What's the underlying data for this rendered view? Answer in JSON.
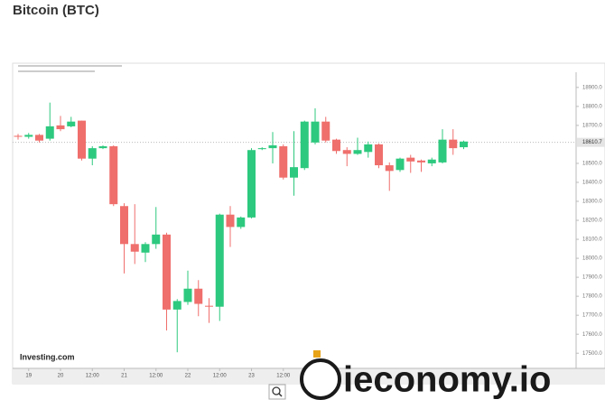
{
  "title": "Bitcoin (BTC)",
  "chart_data": {
    "type": "candlestick",
    "brand": "Investing.com",
    "watermark": "ieconomy.io",
    "categories": [
      null,
      "19",
      null,
      null,
      "20",
      null,
      null,
      "12:00",
      null,
      null,
      "21",
      null,
      null,
      "12:00",
      null,
      null,
      "22",
      null,
      null,
      "12:00",
      null,
      null,
      "23",
      null,
      null,
      "12:00",
      null,
      null,
      null,
      null,
      null,
      null,
      null,
      null,
      null,
      null,
      null,
      null,
      null,
      null,
      null,
      null,
      null
    ],
    "open": [
      18645,
      18640,
      18650,
      18630,
      18700,
      18695,
      18725,
      18525,
      18580,
      18590,
      18275,
      18075,
      18030,
      18075,
      18125,
      17730,
      17770,
      17840,
      17750,
      17745,
      18230,
      18165,
      18215,
      18575,
      18580,
      18590,
      18425,
      18475,
      18610,
      18720,
      18625,
      18570,
      18550,
      18560,
      18600,
      18490,
      18465,
      18530,
      18515,
      18500,
      18505,
      18625,
      18585
    ],
    "high": [
      18655,
      18660,
      18655,
      18820,
      18750,
      18745,
      18725,
      18590,
      18595,
      18595,
      18290,
      18285,
      18085,
      18270,
      18135,
      17785,
      17935,
      17885,
      17790,
      18235,
      18275,
      18220,
      18580,
      18585,
      18665,
      18600,
      18670,
      18725,
      18790,
      18745,
      18630,
      18585,
      18635,
      18615,
      18605,
      18505,
      18530,
      18545,
      18520,
      18530,
      18680,
      18680,
      18620
    ],
    "low": [
      18625,
      18630,
      18610,
      18620,
      18670,
      18690,
      18515,
      18490,
      18575,
      18275,
      17920,
      17970,
      17980,
      18050,
      17620,
      17505,
      17755,
      17695,
      17660,
      17670,
      18060,
      18155,
      18210,
      18570,
      18500,
      18415,
      18330,
      18465,
      18600,
      18610,
      18550,
      18485,
      18545,
      18530,
      18475,
      18355,
      18455,
      18450,
      18455,
      18485,
      18500,
      18545,
      18575
    ],
    "close": [
      18640,
      18650,
      18620,
      18695,
      18680,
      18720,
      18525,
      18580,
      18590,
      18285,
      18075,
      18035,
      18075,
      18125,
      17730,
      17775,
      17840,
      17760,
      17745,
      18230,
      18165,
      18215,
      18570,
      18580,
      18595,
      18425,
      18480,
      18720,
      18720,
      18620,
      18565,
      18550,
      18570,
      18600,
      18490,
      18460,
      18525,
      18510,
      18505,
      18520,
      18625,
      18580,
      18615
    ],
    "up_color": "#2dc97e",
    "down_color": "#ef6f6c",
    "ylim": [
      17425,
      18980
    ],
    "yticks": [
      {
        "value": 18900,
        "label": "18900.0"
      },
      {
        "value": 18800,
        "label": "18800.0"
      },
      {
        "value": 18700,
        "label": "18700.0"
      },
      {
        "value": 18500,
        "label": "18500.0"
      },
      {
        "value": 18400,
        "label": "18400.0"
      },
      {
        "value": 18300,
        "label": "18300.0"
      },
      {
        "value": 18200,
        "label": "18200.0"
      },
      {
        "value": 18100,
        "label": "18100.0"
      },
      {
        "value": 18000,
        "label": "18000.0"
      },
      {
        "value": 17900,
        "label": "17900.0"
      },
      {
        "value": 17800,
        "label": "17800.0"
      },
      {
        "value": 17700,
        "label": "17700.0"
      },
      {
        "value": 17600,
        "label": "17600.0"
      },
      {
        "value": 17500,
        "label": "17500.0"
      }
    ],
    "last_price": 18610.7,
    "grid": false
  }
}
